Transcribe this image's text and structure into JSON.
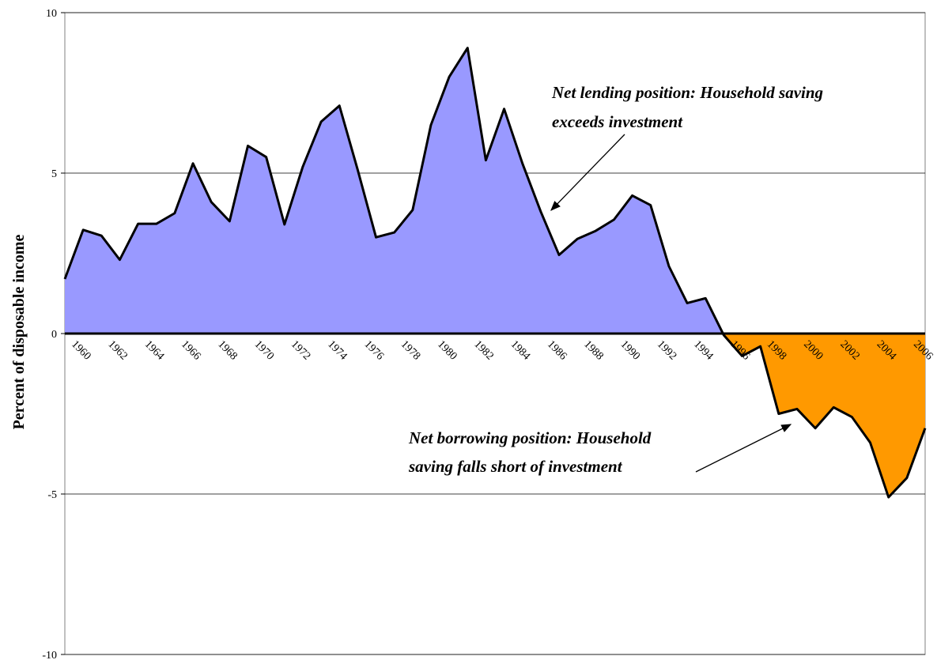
{
  "chart_data": {
    "type": "area",
    "y_label": "Percent of disposable income",
    "categories": [
      "1960",
      null,
      "1962",
      null,
      "1964",
      null,
      "1966",
      null,
      "1968",
      null,
      "1970",
      null,
      "1972",
      null,
      "1974",
      null,
      "1976",
      null,
      "1978",
      null,
      "1980",
      null,
      "1982",
      null,
      "1984",
      null,
      "1986",
      null,
      "1988",
      null,
      "1990",
      null,
      "1992",
      null,
      "1994",
      null,
      "1996",
      null,
      "1998",
      null,
      "2000",
      null,
      "2002",
      null,
      "2004",
      null,
      "2006",
      null
    ],
    "values": [
      1.7,
      3.23,
      3.05,
      2.3,
      3.42,
      3.42,
      3.75,
      5.3,
      4.1,
      3.5,
      5.85,
      5.5,
      3.4,
      5.2,
      6.6,
      7.1,
      5.1,
      3.0,
      3.15,
      3.85,
      6.5,
      8.0,
      8.9,
      5.4,
      7.0,
      5.3,
      3.8,
      2.45,
      2.95,
      3.2,
      3.55,
      4.3,
      4.0,
      2.1,
      0.95,
      1.1,
      -0.05,
      -0.7,
      -0.4,
      -2.5,
      -2.35,
      -2.95,
      -2.3,
      -2.6,
      -3.4,
      -5.1,
      -4.5,
      -2.95
    ],
    "positive_color": "#9999ff",
    "negative_color": "#ff9900",
    "line_color": "#000000",
    "ylim": [
      -10,
      10
    ],
    "yticks": [
      -10,
      -5,
      0,
      5,
      10
    ],
    "grid": true,
    "annotations": [
      {
        "lines": [
          "Net lending position: Household saving",
          "exceeds investment"
        ]
      },
      {
        "lines": [
          "Net borrowing position: Household",
          "saving falls short of investment"
        ]
      }
    ]
  }
}
